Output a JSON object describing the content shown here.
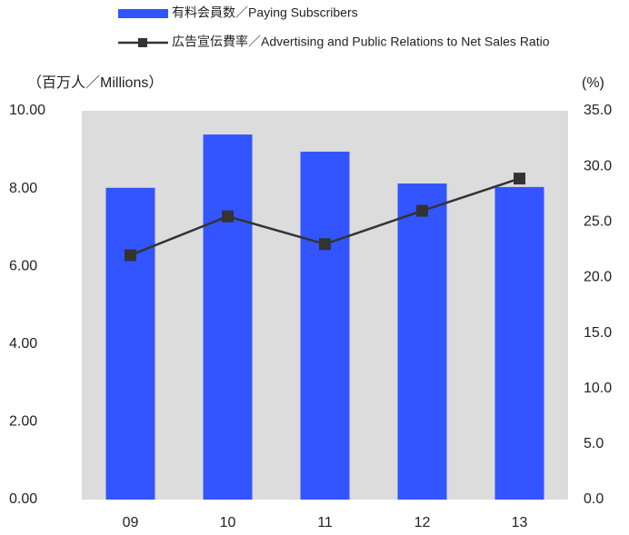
{
  "chart_data": {
    "type": "bar",
    "categories": [
      "09",
      "10",
      "11",
      "12",
      "13"
    ],
    "series": [
      {
        "name": "有料会員数／Paying Subscribers",
        "type": "bar",
        "color": "#3355ff",
        "values": [
          8.02,
          9.39,
          8.95,
          8.13,
          8.04
        ]
      },
      {
        "name": "広告宣伝費率／Advertising and Public Relations to Net Sales Ratio",
        "type": "line",
        "axis": "y2",
        "color": "#333333",
        "values": [
          22.0,
          25.5,
          23.0,
          26.0,
          28.9
        ]
      }
    ],
    "y_label": "（百万人／Millions）",
    "y2_label": "(%)",
    "ylim": [
      0,
      10
    ],
    "yticks": [
      {
        "value": 0,
        "label": "0.00"
      },
      {
        "value": 2,
        "label": "2.00"
      },
      {
        "value": 4,
        "label": "4.00"
      },
      {
        "value": 6,
        "label": "6.00"
      },
      {
        "value": 8,
        "label": "8.00"
      },
      {
        "value": 10,
        "label": "10.00"
      }
    ],
    "y2lim": [
      0,
      35
    ],
    "y2ticks": [
      {
        "value": 0,
        "label": "0.0"
      },
      {
        "value": 5,
        "label": "5.0"
      },
      {
        "value": 10,
        "label": "10.0"
      },
      {
        "value": 15,
        "label": "15.0"
      },
      {
        "value": 20,
        "label": "20.0"
      },
      {
        "value": 25,
        "label": "25.0"
      },
      {
        "value": 30,
        "label": "30.0"
      },
      {
        "value": 35,
        "label": "35.0"
      }
    ],
    "plot_background": "#dcdcdc"
  }
}
